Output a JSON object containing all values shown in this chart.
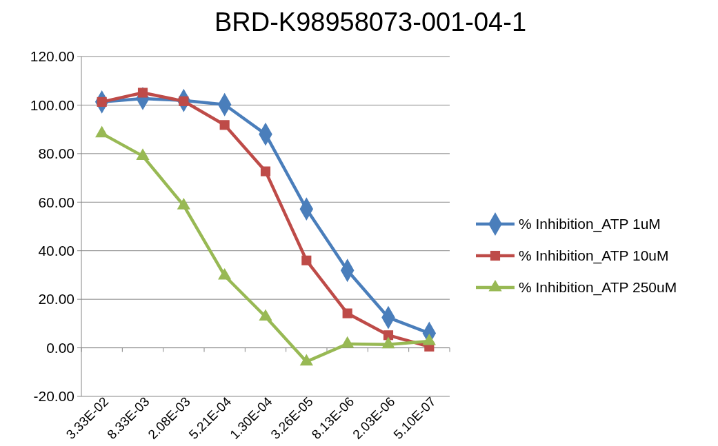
{
  "chart_data": {
    "type": "line",
    "title": "BRD-K98958073-001-04-1",
    "categories": [
      "3.33E-02",
      "8.33E-03",
      "2.08E-03",
      "5.21E-04",
      "1.30E-04",
      "3.26E-05",
      "8.13E-06",
      "2.03E-06",
      "5.10E-07"
    ],
    "series": [
      {
        "name": "% Inhibition_ATP 1uM",
        "color": "#4a7ebb",
        "marker": "diamond",
        "values": [
          101.3,
          102.7,
          101.9,
          100.2,
          88,
          57.2,
          31.9,
          12.5,
          6
        ]
      },
      {
        "name": "% Inhibition_ATP 10uM",
        "color": "#be4b48",
        "marker": "square",
        "values": [
          101.3,
          105.1,
          101.6,
          91.8,
          72.7,
          36,
          14.2,
          5.2,
          0.5
        ]
      },
      {
        "name": "% Inhibition_ATP 250uM",
        "color": "#98b954",
        "marker": "triangle",
        "values": [
          88.3,
          79,
          58.6,
          29.7,
          12.8,
          -5.7,
          1.6,
          1.4,
          2.7
        ]
      }
    ],
    "ylim": [
      -20,
      120
    ],
    "yticks": [
      {
        "value": -20,
        "label": "-20.00"
      },
      {
        "value": 0,
        "label": "0.00"
      },
      {
        "value": 20,
        "label": "20.00"
      },
      {
        "value": 40,
        "label": "40.00"
      },
      {
        "value": 60,
        "label": "60.00"
      },
      {
        "value": 80,
        "label": "80.00"
      },
      {
        "value": 100,
        "label": "100.00"
      },
      {
        "value": 120,
        "label": "120.00"
      }
    ],
    "grid": "y",
    "legend": "right",
    "line_style": "solid"
  }
}
